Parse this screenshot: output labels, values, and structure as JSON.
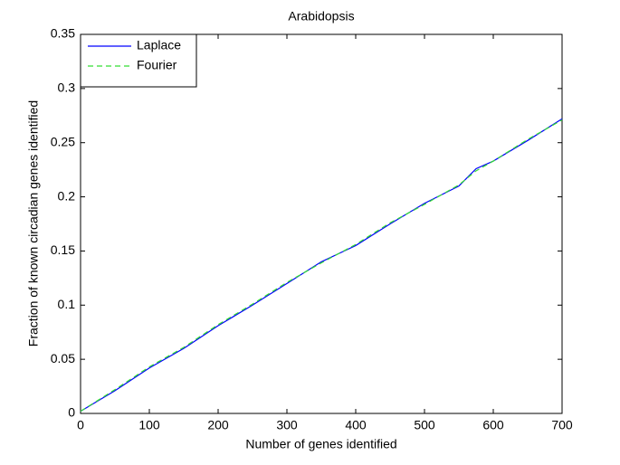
{
  "chart_data": {
    "type": "line",
    "title": "Arabidopsis",
    "xlabel": "Number of genes identified",
    "ylabel": "Fraction of known circadian genes identified",
    "x": [
      0,
      50,
      100,
      150,
      200,
      250,
      300,
      350,
      400,
      450,
      500,
      550,
      575,
      600,
      650,
      700
    ],
    "series": [
      {
        "name": "Laplace",
        "color": "#0000ff",
        "dashed": false,
        "values": [
          0.002,
          0.021,
          0.042,
          0.06,
          0.081,
          0.1,
          0.12,
          0.14,
          0.155,
          0.175,
          0.194,
          0.21,
          0.226,
          0.233,
          0.252,
          0.272
        ]
      },
      {
        "name": "Fourier",
        "color": "#33dd33",
        "dashed": true,
        "values": [
          0.002,
          0.022,
          0.043,
          0.061,
          0.082,
          0.101,
          0.121,
          0.139,
          0.156,
          0.176,
          0.193,
          0.211,
          0.224,
          0.233,
          0.253,
          0.271
        ]
      }
    ],
    "xlim": [
      0,
      700
    ],
    "xticks": [
      0,
      100,
      200,
      300,
      400,
      500,
      600,
      700
    ],
    "ylim": [
      0,
      0.35
    ],
    "yticks": [
      0,
      0.05,
      0.1,
      0.15,
      0.2,
      0.25,
      0.3,
      0.35
    ],
    "legend": "northwest"
  }
}
